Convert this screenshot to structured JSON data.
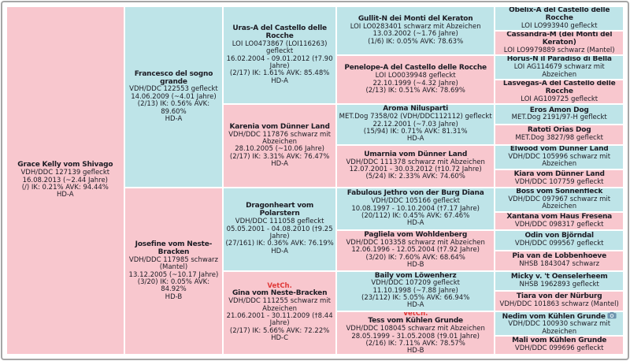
{
  "colors": {
    "male_bg": "#bee4e8",
    "female_bg": "#f8c7ce",
    "text": "#1c1c24",
    "badge": "#e03a3a",
    "frame_border": "#a6a6a6",
    "gap": "#ffffff",
    "camera_icon": "#6d93ad"
  },
  "icons": {
    "camera": "camera-icon"
  },
  "pedigree": {
    "cells": [
      {
        "name": "Grace Kelly vom Shivago",
        "sex": "female",
        "col": 1,
        "row": 1,
        "span": 16,
        "details": [
          "VDH/DDC 127139 gefleckt",
          "16.08.2013 (~2.44 Jahre)",
          "(/) IK: 0.21% AVK: 94.44%",
          "HD-A"
        ]
      },
      {
        "name": "Francesco del sogno grande",
        "sex": "male",
        "col": 2,
        "row": 1,
        "span": 8,
        "details": [
          "VDH/DDC 122553 gefleckt",
          "14.06.2009 (~4.01 Jahre)",
          "(2/13) IK: 0.56% AVK: 89.60%",
          "HD-A"
        ]
      },
      {
        "name": "Josefine vom Neste-Bracken",
        "sex": "female",
        "col": 2,
        "row": 9,
        "span": 8,
        "details": [
          "VDH/DDC 117985 schwarz (Mantel)",
          "13.12.2005 (~10.17 Jahre)",
          "(3/20) IK: 0.05% AVK: 84.92%",
          "HD-B"
        ]
      },
      {
        "name": "Uras-A del Castello delle Rocche",
        "sex": "male",
        "col": 3,
        "row": 1,
        "span": 4,
        "details": [
          "LOI LO0473867 (LOI116263) gefleckt",
          "16.02.2004 - 09.01.2012 (†7.90 Jahre)",
          "(2/17) IK: 1.61% AVK: 85.48%",
          "HD-A"
        ]
      },
      {
        "name": "Karenia vom Dünner Land",
        "sex": "female",
        "col": 3,
        "row": 5,
        "span": 4,
        "details": [
          "VDH/DDC 117876 schwarz mit Abzeichen",
          "28.10.2005 (~10.06 Jahre)",
          "(2/17) IK: 3.31% AVK: 76.47%",
          "HD-A"
        ]
      },
      {
        "name": "Dragonheart vom Polarstern",
        "sex": "male",
        "col": 3,
        "row": 9,
        "span": 4,
        "details": [
          "VDH/DDC 111058 gefleckt",
          "05.05.2001 - 04.08.2010 (†9.25 Jahre)",
          "(27/161) IK: 0.36% AVK: 76.19%",
          "HD-A"
        ]
      },
      {
        "name": "Gina vom Neste-Bracken",
        "sex": "female",
        "col": 3,
        "row": 13,
        "span": 4,
        "badge": "VetCh.",
        "details": [
          "VDH/DDC 111255 schwarz mit Abzeichen",
          "21.06.2001 - 30.11.2009 (†8.44 Jahre)",
          "(2/17) IK: 5.66% AVK: 72.22%",
          "HD-C"
        ]
      },
      {
        "name": "Gullit-N dei Monti del Keraton",
        "sex": "male",
        "col": 4,
        "row": 1,
        "span": 2,
        "details": [
          "LOI LO0283401 schwarz mit Abzeichen",
          "13.03.2002 (~1.76 Jahre)",
          "(1/6) IK: 0.05% AVK: 78.63%"
        ]
      },
      {
        "name": "Penelope-A del Castello delle Rocche",
        "sex": "female",
        "col": 4,
        "row": 3,
        "span": 2,
        "details": [
          "LOI LO0039948 gefleckt",
          "22.10.1999 (~4.32 Jahre)",
          "(2/13) IK: 0.51% AVK: 78.69%"
        ]
      },
      {
        "name": "Aroma Nilusparti",
        "sex": "male",
        "col": 4,
        "row": 5,
        "span": 2,
        "details": [
          "MET.Dog 7358/02 (VDH/DDC112112) gefleckt",
          "22.12.2001 (~7.03 Jahre)",
          "(15/94) IK: 0.71% AVK: 81.31%",
          "HD-A"
        ]
      },
      {
        "name": "Umarnia vom Dünner Land",
        "sex": "female",
        "col": 4,
        "row": 7,
        "span": 2,
        "details": [
          "VDH/DDC 111378 schwarz mit Abzeichen",
          "12.07.2001 - 30.03.2012 (†10.72 Jahre)",
          "(5/24) IK: 2.33% AVK: 74.60%"
        ]
      },
      {
        "name": "Fabulous Jethro von der Burg Diana",
        "sex": "male",
        "col": 4,
        "row": 9,
        "span": 2,
        "details": [
          "VDH/DDC 105166 gefleckt",
          "10.08.1997 - 10.10.2004 (†7.17 Jahre)",
          "(20/112) IK: 0.45% AVK: 67.46%",
          "HD-A"
        ]
      },
      {
        "name": "Pagliela vom Wohldenberg",
        "sex": "female",
        "col": 4,
        "row": 11,
        "span": 2,
        "details": [
          "VDH/DDC 103358 schwarz mit Abzeichen",
          "12.06.1996 - 12.05.2004 (†7.92 Jahre)",
          "(3/20) IK: 7.60% AVK: 68.64%",
          "HD-B"
        ]
      },
      {
        "name": "Baily vom Löwenherz",
        "sex": "male",
        "col": 4,
        "row": 13,
        "span": 2,
        "details": [
          "VDH/DDC 107209 gefleckt",
          "11.10.1998 (~7.88 Jahre)",
          "(23/112) IK: 5.05% AVK: 66.94%",
          "HD-A"
        ]
      },
      {
        "name": "Tess vom Kühlen Grunde",
        "sex": "female",
        "col": 4,
        "row": 15,
        "span": 2,
        "badge": "VetCh.",
        "details": [
          "VDH/DDC 108045 schwarz mit Abzeichen",
          "28.05.1999 - 31.05.2008 (†9.01 Jahre)",
          "(2/16) IK: 7.11% AVK: 78.57%",
          "HD-B"
        ]
      },
      {
        "name": "Obelix-A del Castello delle Rocche",
        "sex": "male",
        "col": 5,
        "row": 1,
        "span": 1,
        "details": [
          "LOI LO993940 gefleckt"
        ]
      },
      {
        "name": "Cassandra-M (dei Monti del Keraton)",
        "sex": "female",
        "col": 5,
        "row": 2,
        "span": 1,
        "details": [
          "LOI LO9979889 schwarz (Mantel)"
        ]
      },
      {
        "name": "Horus-N il Paradiso di Bella",
        "sex": "male",
        "col": 5,
        "row": 3,
        "span": 1,
        "details": [
          "LOI AG114679 schwarz mit Abzeichen"
        ]
      },
      {
        "name": "Lasvegas-A del Castello delle Rocche",
        "sex": "female",
        "col": 5,
        "row": 4,
        "span": 1,
        "details": [
          "LOI AG109725 gefleckt"
        ]
      },
      {
        "name": "Eros Amon Dog",
        "sex": "male",
        "col": 5,
        "row": 5,
        "span": 1,
        "details": [
          "MET.Dog 2191/97-H gefleckt"
        ]
      },
      {
        "name": "Ratoti Orias Dog",
        "sex": "female",
        "col": 5,
        "row": 6,
        "span": 1,
        "details": [
          "MET.Dog 3827/98 gefleckt"
        ]
      },
      {
        "name": "Elwood vom Dünner Land",
        "sex": "male",
        "col": 5,
        "row": 7,
        "span": 1,
        "details": [
          "VDH/DDC 105996 schwarz mit Abzeichen"
        ]
      },
      {
        "name": "Kiara vom Dünner Land",
        "sex": "female",
        "col": 5,
        "row": 8,
        "span": 1,
        "details": [
          "VDH/DDC 107759 gefleckt"
        ]
      },
      {
        "name": "Boss vom Sonnenfleck",
        "sex": "male",
        "col": 5,
        "row": 9,
        "span": 1,
        "details": [
          "VDH/DDC 097967 schwarz mit Abzeichen"
        ]
      },
      {
        "name": "Xantana vom Haus Fresena",
        "sex": "female",
        "col": 5,
        "row": 10,
        "span": 1,
        "details": [
          "VDH/DDC 098317 gefleckt"
        ]
      },
      {
        "name": "Odin von Björndal",
        "sex": "male",
        "col": 5,
        "row": 11,
        "span": 1,
        "details": [
          "VDH/DDC 099567 gefleckt"
        ]
      },
      {
        "name": "Pia van de Lobbenhoeve",
        "sex": "female",
        "col": 5,
        "row": 12,
        "span": 1,
        "details": [
          "NHSB 1843047 schwarz"
        ]
      },
      {
        "name": "Micky v. 't Oenselerheem",
        "sex": "male",
        "col": 5,
        "row": 13,
        "span": 1,
        "details": [
          "NHSB 1962893 gefleckt"
        ]
      },
      {
        "name": "Tiara von der Nürburg",
        "sex": "female",
        "col": 5,
        "row": 14,
        "span": 1,
        "details": [
          "VDH/DDC 101863 schwarz (Mantel)"
        ]
      },
      {
        "name": "Nedim vom Kühlen Grunde",
        "sex": "male",
        "col": 5,
        "row": 15,
        "span": 1,
        "camera": true,
        "details": [
          "VDH/DDC 100930 schwarz mit Abzeichen"
        ]
      },
      {
        "name": "Mali vom Kühlen Grunde",
        "sex": "female",
        "col": 5,
        "row": 16,
        "span": 1,
        "details": [
          "VDH/DDC 099696 gefleckt"
        ]
      }
    ]
  }
}
